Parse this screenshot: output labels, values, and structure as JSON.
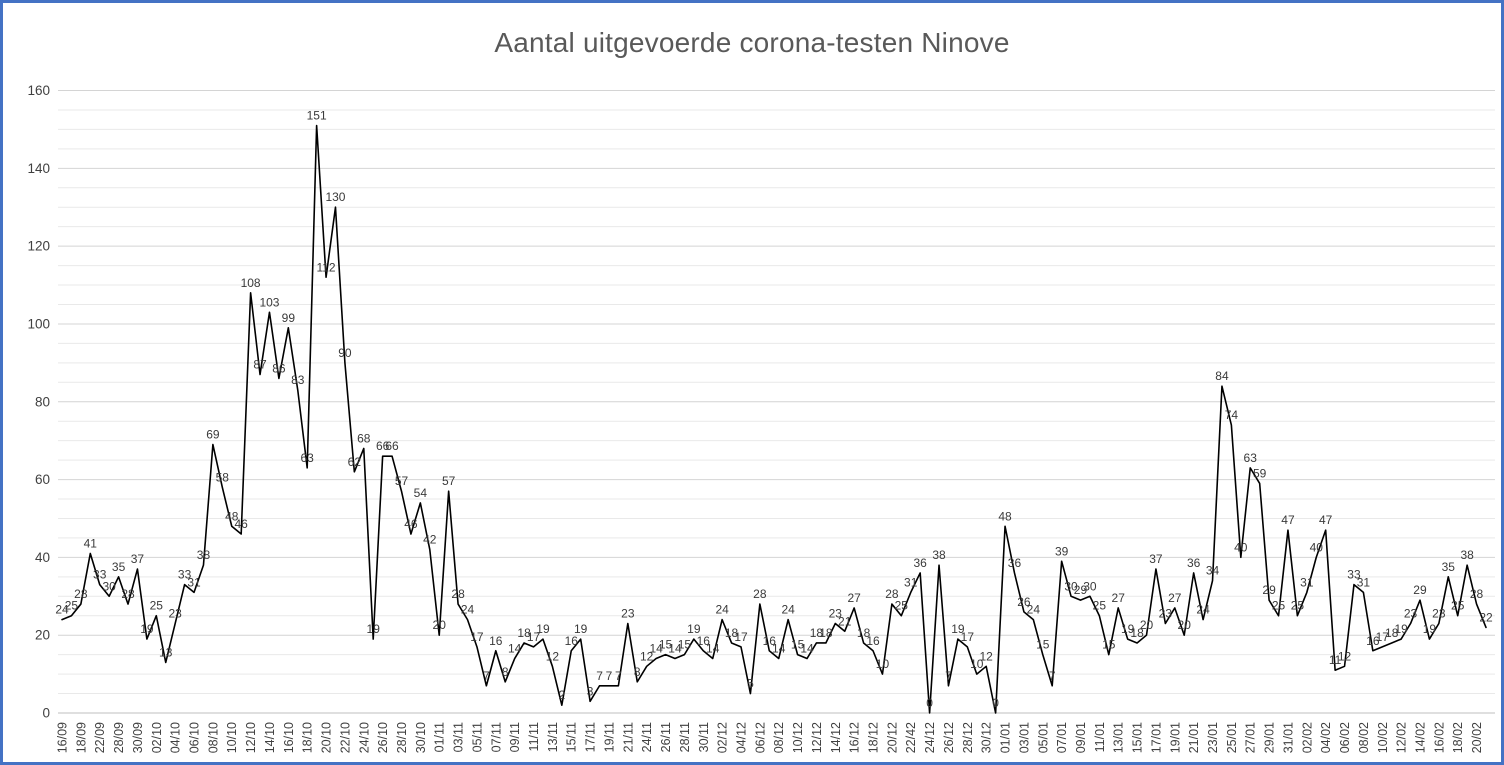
{
  "chart_data": {
    "type": "line",
    "title": "Aantal uitgevoerde corona-testen Ninove",
    "xlabel": "",
    "ylabel": "",
    "ylim": [
      0,
      160
    ],
    "y_ticks": [
      0,
      20,
      40,
      60,
      80,
      100,
      120,
      140,
      160
    ],
    "minor_grid_step": 5,
    "grid": true,
    "legend": "none",
    "line_color": "#000000",
    "data_labels_shown": true,
    "x_tick_labels": [
      "16/09",
      "18/09",
      "22/09",
      "28/09",
      "30/09",
      "02/10",
      "04/10",
      "06/10",
      "08/10",
      "10/10",
      "12/10",
      "14/10",
      "16/10",
      "18/10",
      "20/10",
      "22/10",
      "24/10",
      "26/10",
      "28/10",
      "30/10",
      "01/11",
      "03/11",
      "05/11",
      "07/11",
      "09/11",
      "11/11",
      "13/11",
      "15/11",
      "17/11",
      "19/11",
      "21/11",
      "24/11",
      "26/11",
      "28/11",
      "30/11",
      "02/12",
      "04/12",
      "06/12",
      "08/12",
      "10/12",
      "12/12",
      "14/12",
      "16/12",
      "18/12",
      "20/12",
      "22/42",
      "24/12",
      "26/12",
      "28/12",
      "30/12",
      "01/01",
      "03/01",
      "05/01",
      "07/01",
      "09/01",
      "11/01",
      "13/01",
      "15/01",
      "17/01",
      "19/01",
      "21/01",
      "23/01",
      "25/01",
      "27/01",
      "29/01",
      "31/01",
      "02/02",
      "04/02",
      "06/02",
      "08/02",
      "10/02",
      "12/02",
      "14/02",
      "16/02",
      "18/02",
      "20/02"
    ],
    "values": [
      24,
      25,
      28,
      41,
      33,
      30,
      35,
      28,
      37,
      19,
      25,
      13,
      23,
      33,
      31,
      38,
      69,
      58,
      48,
      46,
      108,
      87,
      103,
      86,
      99,
      83,
      63,
      151,
      112,
      130,
      90,
      62,
      68,
      19,
      66,
      66,
      57,
      46,
      54,
      42,
      20,
      57,
      28,
      24,
      17,
      7,
      16,
      8,
      14,
      18,
      17,
      19,
      12,
      2,
      16,
      19,
      3,
      7,
      7,
      7,
      23,
      8,
      12,
      14,
      15,
      14,
      15,
      19,
      16,
      14,
      24,
      18,
      17,
      5,
      28,
      16,
      14,
      24,
      15,
      14,
      18,
      18,
      23,
      21,
      27,
      18,
      16,
      10,
      28,
      25,
      31,
      36,
      0,
      38,
      7,
      19,
      17,
      10,
      12,
      0,
      48,
      36,
      26,
      24,
      15,
      7,
      39,
      30,
      29,
      30,
      25,
      15,
      27,
      19,
      18,
      20,
      37,
      23,
      27,
      20,
      36,
      24,
      34,
      84,
      74,
      40,
      63,
      59,
      29,
      25,
      47,
      25,
      31,
      40,
      47,
      11,
      12,
      33,
      31,
      16,
      17,
      18,
      19,
      23,
      29,
      19,
      23,
      35,
      25,
      38,
      28,
      22
    ]
  },
  "style": {
    "border_color": "#4472c4",
    "background": "#ffffff",
    "title_color": "#595959",
    "axis_label_color": "#404040",
    "data_label_color": "#3a3a3a",
    "major_grid_color": "#d4d4d4",
    "minor_grid_color": "#e9e9e9",
    "axis_line_color": "#bfbfbf",
    "series_color": "#000000"
  }
}
